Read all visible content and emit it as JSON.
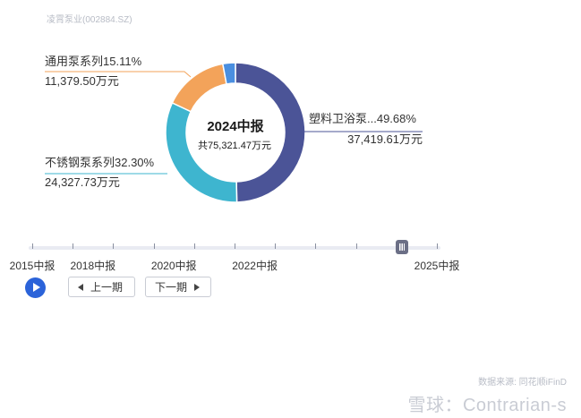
{
  "header": {
    "company": "凌霄泵业(002884.SZ)"
  },
  "chart_data": {
    "type": "pie",
    "center_title": "2024中报",
    "center_total": "共75,321.47万元",
    "slices": [
      {
        "name": "塑料卫浴泵...",
        "percent_label": "49.68%",
        "percent": 49.68,
        "value_label": "37,419.61万元",
        "value": 37419.61,
        "color": "#4b5497"
      },
      {
        "name": "不锈钢泵系列",
        "percent_label": "32.30%",
        "percent": 32.3,
        "value_label": "24,327.73万元",
        "value": 24327.73,
        "color": "#3eb5cf"
      },
      {
        "name": "通用泵系列",
        "percent_label": "15.11%",
        "percent": 15.11,
        "value_label": "11,379.50万元",
        "value": 11379.5,
        "color": "#f3a35a"
      },
      {
        "name": "",
        "percent": 2.91,
        "color": "#4a8fe0"
      }
    ]
  },
  "timeline": {
    "labels": [
      "2015中报",
      "2018中报",
      "2020中报",
      "2022中报",
      "2025中报"
    ],
    "periods": 21,
    "selected_index": 18
  },
  "controls": {
    "prev_label": "上一期",
    "next_label": "下一期"
  },
  "footer": {
    "source": "数据来源: 同花顺iFinD",
    "watermark": "雪球：Contrarian-s"
  }
}
